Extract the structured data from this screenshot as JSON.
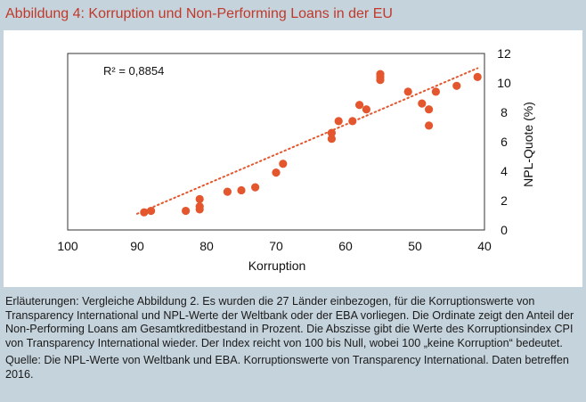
{
  "figure": {
    "title": "Abbildung 4: Korruption und Non-Performing Loans in der EU",
    "r2_label": "R² = 0,8854",
    "explanation": "Erläuterungen: Vergleiche Abbildung 2. Es wurden die 27 Länder einbezogen, für die Korruptionswerte von Transparency International und NPL-Werte der Weltbank oder der EBA vorliegen. Die Ordinate zeigt den Anteil der Non-Performing Loans am Gesamtkreditbestand in Prozent. Die Abszisse gibt die Werte des Korruptionsindex CPI von Transparency International wieder. Der Index reicht von 100 bis Null, wobei 100 „keine Korruption“ bedeutet.",
    "source": "Quelle: Die NPL-Werte von Weltbank und EBA. Korruptionswerte von Transparency International. Daten betreffen 2016."
  },
  "colors": {
    "background": "#c5d3dc",
    "title": "#c0392b",
    "points": "#e4572e",
    "trendline": "#e4572e"
  },
  "chart_data": {
    "type": "scatter",
    "xlabel": "Korruption",
    "ylabel": "NPL-Quote (%)",
    "xlim": [
      100,
      40
    ],
    "ylim": [
      0,
      12
    ],
    "x_reversed": true,
    "x_ticks": [
      100,
      90,
      80,
      70,
      60,
      50,
      40
    ],
    "y_ticks": [
      0,
      2,
      4,
      6,
      8,
      10,
      12
    ],
    "y_axis_side": "right",
    "grid": false,
    "trendline": {
      "style": "dotted",
      "x": [
        90,
        41
      ],
      "y": [
        1.1,
        11.0
      ]
    },
    "annotation": "R² = 0,8854",
    "points": [
      {
        "x": 89,
        "y": 1.2
      },
      {
        "x": 88,
        "y": 1.3
      },
      {
        "x": 83,
        "y": 1.3
      },
      {
        "x": 81,
        "y": 1.4
      },
      {
        "x": 81,
        "y": 1.6
      },
      {
        "x": 81,
        "y": 2.1
      },
      {
        "x": 77,
        "y": 2.6
      },
      {
        "x": 75,
        "y": 2.7
      },
      {
        "x": 73,
        "y": 2.9
      },
      {
        "x": 70,
        "y": 3.9
      },
      {
        "x": 69,
        "y": 4.5
      },
      {
        "x": 62,
        "y": 6.2
      },
      {
        "x": 62,
        "y": 6.6
      },
      {
        "x": 61,
        "y": 7.4
      },
      {
        "x": 59,
        "y": 7.4
      },
      {
        "x": 58,
        "y": 8.5
      },
      {
        "x": 57,
        "y": 8.2
      },
      {
        "x": 55,
        "y": 10.2
      },
      {
        "x": 55,
        "y": 10.4
      },
      {
        "x": 55,
        "y": 10.6
      },
      {
        "x": 51,
        "y": 9.4
      },
      {
        "x": 49,
        "y": 8.6
      },
      {
        "x": 48,
        "y": 8.2
      },
      {
        "x": 48,
        "y": 7.1
      },
      {
        "x": 47,
        "y": 9.4
      },
      {
        "x": 44,
        "y": 9.8
      },
      {
        "x": 41,
        "y": 10.4
      }
    ]
  }
}
